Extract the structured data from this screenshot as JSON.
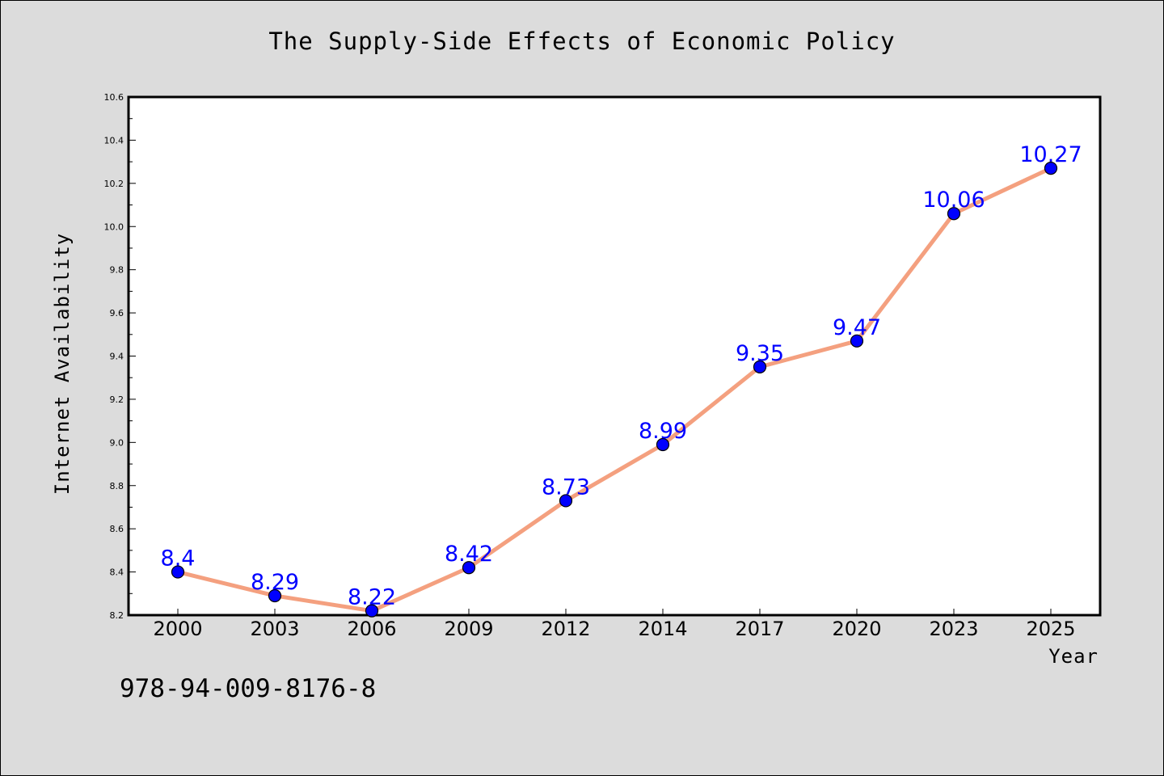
{
  "chart_data": {
    "type": "line",
    "title": "The Supply-Side Effects of Economic Policy",
    "xlabel": "Year",
    "ylabel": "Internet Availability",
    "categories": [
      "2000",
      "2003",
      "2006",
      "2009",
      "2012",
      "2014",
      "2017",
      "2020",
      "2023",
      "2025"
    ],
    "series": [
      {
        "values": [
          8.4,
          8.29,
          8.22,
          8.42,
          8.73,
          8.99,
          9.35,
          9.47,
          10.06,
          10.27
        ],
        "data_labels": [
          "8.4",
          "8.29",
          "8.22",
          "8.42",
          "8.73",
          "8.99",
          "9.35",
          "9.47",
          "10.06",
          "10.27"
        ],
        "line_color": "#f4a07f",
        "marker_color": "#0000ff"
      }
    ],
    "ylim": [
      8.2,
      10.6
    ],
    "yticks": [
      "8.2",
      "8.4",
      "8.6",
      "8.8",
      "9.0",
      "9.2",
      "9.4",
      "9.6",
      "9.8",
      "10.0",
      "10.2",
      "10.4",
      "10.6"
    ],
    "grid": false,
    "legend": false,
    "data_label_color": "#0000ff",
    "background_color": "#dcdcdc",
    "plot_background_color": "#ffffff"
  },
  "footer": {
    "isbn": "978-94-009-8176-8"
  }
}
